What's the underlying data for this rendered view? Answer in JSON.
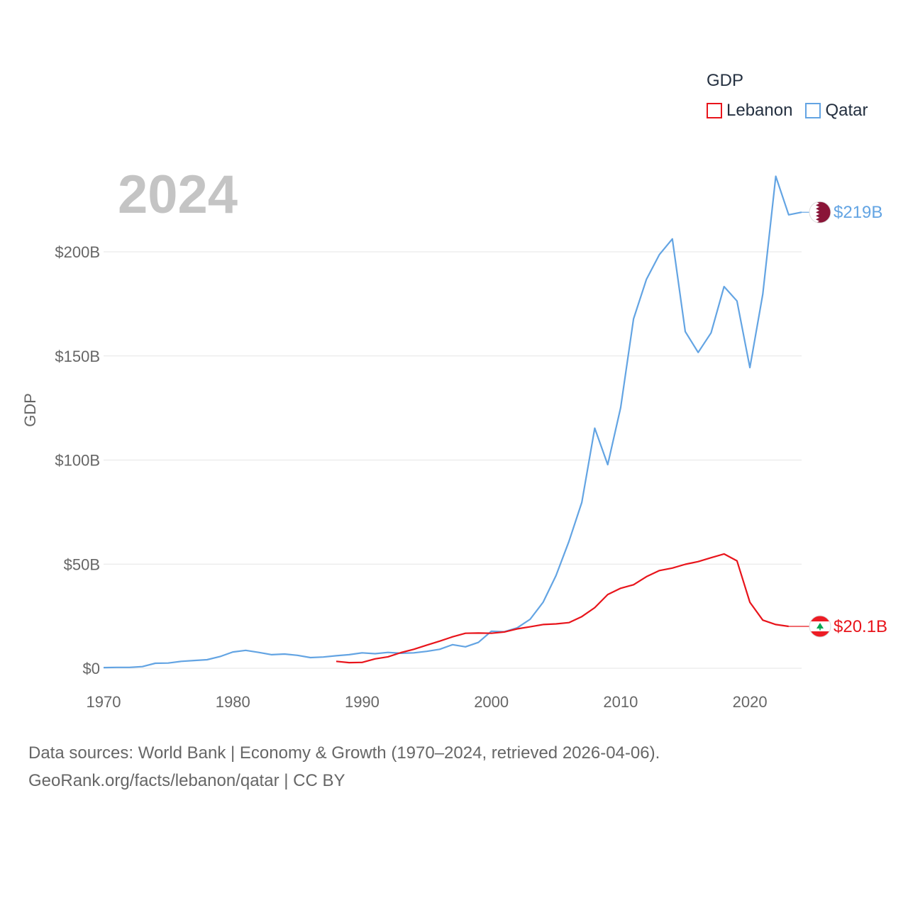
{
  "legend": {
    "title": "GDP",
    "items": [
      {
        "label": "Lebanon",
        "color": "#e8141b"
      },
      {
        "label": "Qatar",
        "color": "#63a4e3"
      }
    ]
  },
  "year_label": "2024",
  "source": {
    "line1": "Data sources: World Bank | Economy & Growth (1970–2024, retrieved 2026-04-06).",
    "line2": "GeoRank.org/facts/lebanon/qatar | CC BY"
  },
  "chart_data": {
    "type": "line",
    "title": "",
    "xlabel": "",
    "ylabel": "GDP",
    "xlim": [
      1970,
      2024
    ],
    "ylim": [
      0,
      200
    ],
    "x_ticks": [
      1970,
      1980,
      1990,
      2000,
      2010,
      2020
    ],
    "y_ticks": [
      0,
      50,
      100,
      150,
      200
    ],
    "y_tick_labels": [
      "$0",
      "$50B",
      "$100B",
      "$150B",
      "$200B"
    ],
    "units": "billions USD",
    "series": [
      {
        "name": "Qatar",
        "color": "#63a4e3",
        "end_label": "$219B",
        "end_flag": "qatar-flag",
        "x": [
          1970,
          1971,
          1972,
          1973,
          1974,
          1975,
          1976,
          1977,
          1978,
          1979,
          1980,
          1981,
          1982,
          1983,
          1984,
          1985,
          1986,
          1987,
          1988,
          1989,
          1990,
          1991,
          1992,
          1993,
          1994,
          1995,
          1996,
          1997,
          1998,
          1999,
          2000,
          2001,
          2002,
          2003,
          2004,
          2005,
          2006,
          2007,
          2008,
          2009,
          2010,
          2011,
          2012,
          2013,
          2014,
          2015,
          2016,
          2017,
          2018,
          2019,
          2020,
          2021,
          2022,
          2023,
          2024
        ],
        "values": [
          0.3,
          0.4,
          0.4,
          0.8,
          2.4,
          2.5,
          3.3,
          3.7,
          4.1,
          5.6,
          7.8,
          8.6,
          7.6,
          6.5,
          6.8,
          6.2,
          5.1,
          5.4,
          6.0,
          6.5,
          7.4,
          7.0,
          7.6,
          7.2,
          7.4,
          8.1,
          9.1,
          11.3,
          10.3,
          12.4,
          17.8,
          17.5,
          19.4,
          23.5,
          31.7,
          44.5,
          60.9,
          79.7,
          115.3,
          97.8,
          125.1,
          167.8,
          186.8,
          198.7,
          206.2,
          161.7,
          151.7,
          161.1,
          183.3,
          176.4,
          144.4,
          179.7,
          236.3,
          217.8,
          219.0
        ]
      },
      {
        "name": "Lebanon",
        "color": "#e8141b",
        "end_label": "$20.1B",
        "end_flag": "lebanon-flag",
        "x": [
          1988,
          1989,
          1990,
          1991,
          1992,
          1993,
          1994,
          1995,
          1996,
          1997,
          1998,
          1999,
          2000,
          2001,
          2002,
          2003,
          2004,
          2005,
          2006,
          2007,
          2008,
          2009,
          2010,
          2011,
          2012,
          2013,
          2014,
          2015,
          2016,
          2017,
          2018,
          2019,
          2020,
          2021,
          2022,
          2023
        ],
        "values": [
          3.3,
          2.7,
          2.8,
          4.5,
          5.5,
          7.5,
          9.1,
          11.1,
          13.0,
          15.1,
          16.8,
          16.9,
          16.8,
          17.4,
          18.9,
          19.9,
          21.0,
          21.3,
          21.9,
          24.8,
          29.1,
          35.4,
          38.4,
          40.1,
          44.0,
          46.9,
          48.1,
          49.9,
          51.2,
          53.1,
          54.9,
          51.6,
          31.7,
          23.1,
          21.0,
          20.1
        ]
      }
    ]
  }
}
